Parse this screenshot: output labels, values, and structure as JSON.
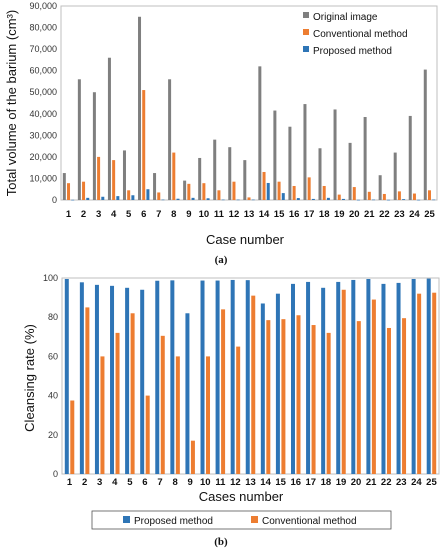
{
  "chart_data": [
    {
      "type": "bar",
      "panel_label": "(a)",
      "xlabel": "Case number",
      "ylabel": "Total volume of the barium (cm³)",
      "ylim": [
        0,
        90000
      ],
      "yticks": [
        "0",
        "10,000",
        "20,000",
        "30,000",
        "40,000",
        "50,000",
        "60,000",
        "70,000",
        "80,000",
        "90,000"
      ],
      "categories": [
        "1",
        "2",
        "3",
        "4",
        "5",
        "6",
        "7",
        "8",
        "9",
        "10",
        "11",
        "12",
        "13",
        "14",
        "15",
        "16",
        "17",
        "18",
        "19",
        "20",
        "21",
        "22",
        "23",
        "24",
        "25"
      ],
      "legend_position": "top-right",
      "grid": false,
      "series": [
        {
          "name": "Original image",
          "color": "#7f7f7f",
          "values": [
            12500,
            56000,
            50000,
            66000,
            23000,
            85000,
            12500,
            56000,
            9000,
            19500,
            28000,
            24500,
            18500,
            62000,
            41500,
            34000,
            44500,
            24000,
            42000,
            26500,
            38500,
            11500,
            22000,
            39000,
            60500
          ]
        },
        {
          "name": "Conventional method",
          "color": "#ed7d31",
          "values": [
            7800,
            8500,
            20000,
            18500,
            4500,
            51000,
            3500,
            22000,
            7500,
            7800,
            4500,
            8500,
            1200,
            13000,
            8500,
            6500,
            10500,
            6500,
            2500,
            6000,
            3800,
            2800,
            4000,
            3000,
            4500
          ]
        },
        {
          "name": "Proposed method",
          "color": "#2e75b6",
          "values": [
            100,
            1000,
            1500,
            1800,
            2200,
            5000,
            200,
            600,
            1000,
            800,
            200,
            200,
            200,
            7900,
            3200,
            900,
            500,
            1000,
            500,
            100,
            200,
            100,
            400,
            100,
            200
          ]
        }
      ]
    },
    {
      "type": "bar",
      "panel_label": "(b)",
      "xlabel": "Cases number",
      "ylabel": "Cleansing rate (%)",
      "ylim": [
        0,
        100
      ],
      "yticks": [
        "0",
        "20",
        "40",
        "60",
        "80",
        "100"
      ],
      "categories": [
        "1",
        "2",
        "3",
        "4",
        "5",
        "6",
        "7",
        "8",
        "9",
        "10",
        "11",
        "12",
        "13",
        "14",
        "15",
        "16",
        "17",
        "18",
        "19",
        "20",
        "21",
        "22",
        "23",
        "24",
        "25"
      ],
      "legend_position": "bottom",
      "grid": false,
      "series": [
        {
          "name": "Proposed method",
          "color": "#2e75b6",
          "values": [
            99.5,
            97.8,
            96.5,
            96,
            95,
            94,
            98.6,
            98.8,
            82,
            98.7,
            98.7,
            99,
            98.9,
            87,
            92,
            97,
            98,
            95,
            98,
            99,
            99.5,
            97,
            97.5,
            99.5,
            99.7
          ]
        },
        {
          "name": "Conventional method",
          "color": "#ed7d31",
          "values": [
            37.5,
            85,
            60,
            72,
            82,
            40,
            70.5,
            60,
            17,
            60,
            84,
            65,
            91,
            78.5,
            79,
            81,
            76,
            72,
            94,
            78,
            89,
            74.5,
            79.5,
            92,
            92.5
          ]
        }
      ]
    }
  ]
}
